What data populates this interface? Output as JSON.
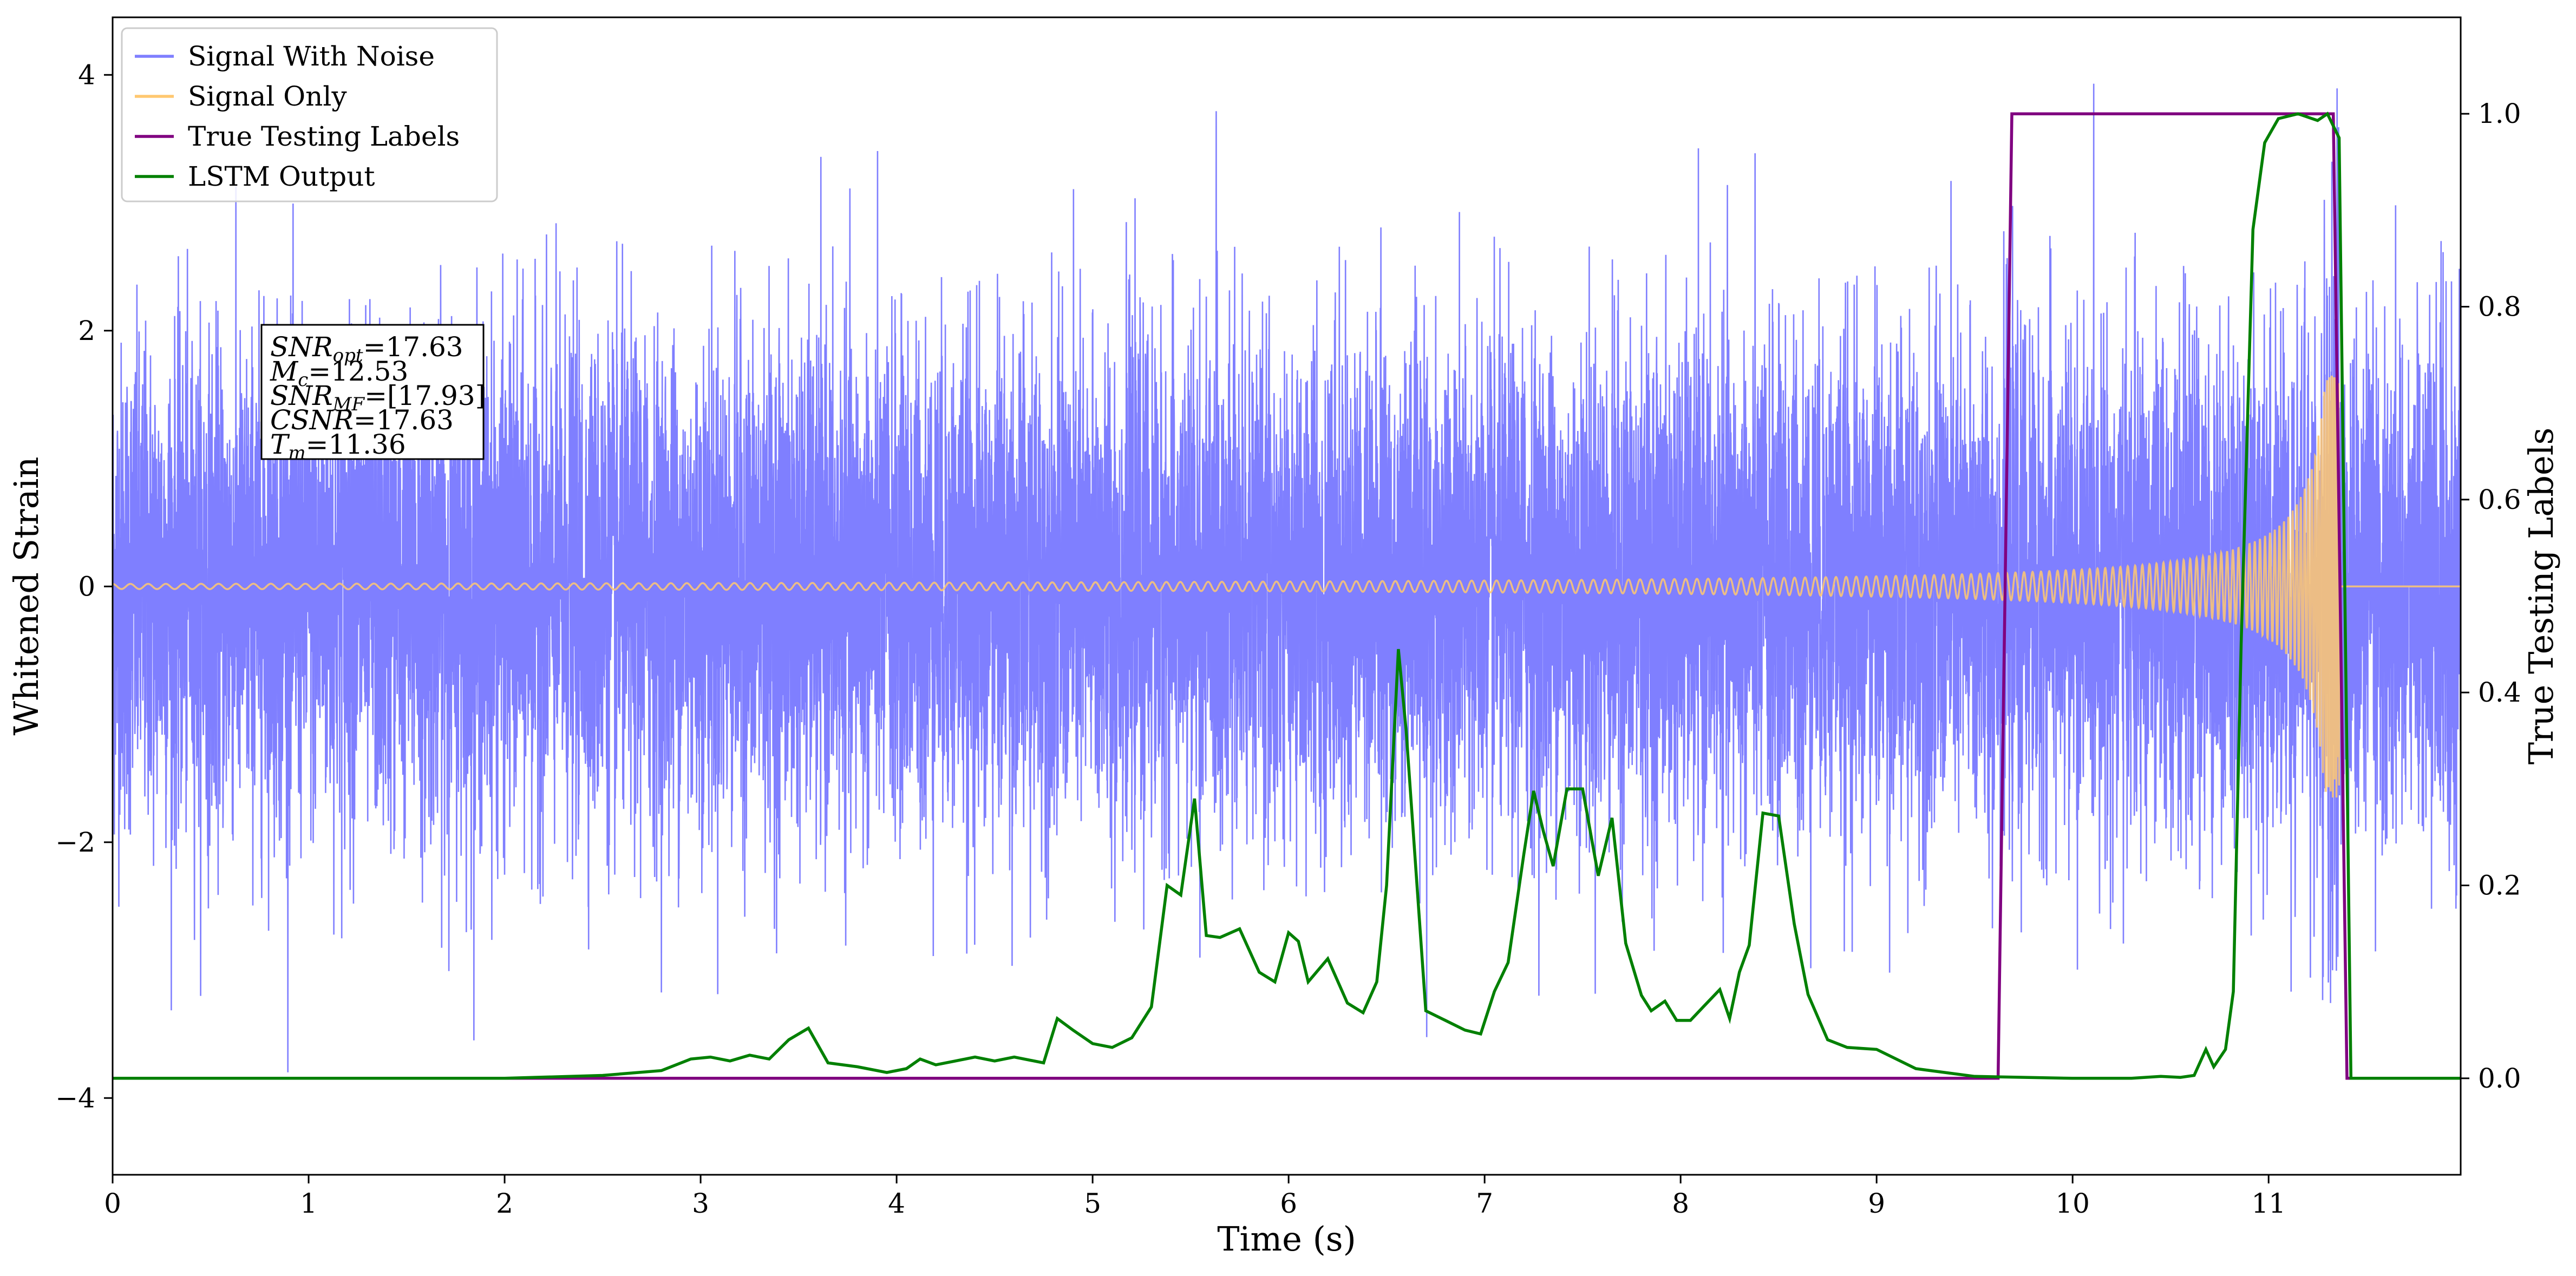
{
  "chart_data": {
    "type": "line",
    "xlabel": "Time (s)",
    "ylabel_left": "Whitened Strain",
    "ylabel_right": "True Testing Labels",
    "xlim": [
      0,
      11.98
    ],
    "ylim_left": [
      -4.6,
      4.45
    ],
    "ylim_right": [
      -0.1,
      1.1
    ],
    "x_ticks": [
      0,
      1,
      2,
      3,
      4,
      5,
      6,
      7,
      8,
      9,
      10,
      11
    ],
    "y_left_ticks": [
      -4,
      -2,
      0,
      2,
      4
    ],
    "y_left_tick_labels": [
      "−4",
      "−2",
      "0",
      "2",
      "4"
    ],
    "y_right_ticks": [
      0.0,
      0.2,
      0.4,
      0.6,
      0.8,
      1.0
    ],
    "y_right_tick_labels": [
      "0.0",
      "0.2",
      "0.4",
      "0.6",
      "0.8",
      "1.0"
    ],
    "grid": false,
    "legend_position": "top-left",
    "colors": {
      "signal_with_noise": "#7f7fff",
      "signal_only": "#ffc870",
      "true_labels": "#800080",
      "lstm_output": "#008000"
    },
    "series": [
      {
        "name": "Signal With Noise",
        "axis": "left",
        "description": "dense noisy strain, roughly within -3.8 to 4.0",
        "noise_envelope": [
          -3.8,
          4.0
        ]
      },
      {
        "name": "Signal Only",
        "axis": "left",
        "chirp_amplitude_start": 0.02,
        "chirp_amplitude_peak": 1.65,
        "merger_time": 11.36
      },
      {
        "name": "True Testing Labels",
        "axis": "right",
        "x": [
          0,
          9.62,
          9.69,
          11.33,
          11.4,
          11.98
        ],
        "y": [
          0,
          0,
          1,
          1,
          0,
          0
        ]
      },
      {
        "name": "LSTM Output",
        "axis": "right",
        "x": [
          0,
          2.0,
          2.5,
          2.8,
          2.95,
          3.05,
          3.15,
          3.25,
          3.35,
          3.45,
          3.55,
          3.65,
          3.8,
          3.95,
          4.05,
          4.12,
          4.2,
          4.3,
          4.4,
          4.5,
          4.6,
          4.75,
          4.82,
          4.9,
          5.0,
          5.1,
          5.2,
          5.3,
          5.38,
          5.45,
          5.52,
          5.58,
          5.65,
          5.75,
          5.85,
          5.93,
          6.0,
          6.05,
          6.1,
          6.2,
          6.3,
          6.38,
          6.45,
          6.5,
          6.56,
          6.6,
          6.7,
          6.8,
          6.9,
          6.98,
          7.05,
          7.12,
          7.2,
          7.25,
          7.3,
          7.35,
          7.42,
          7.5,
          7.58,
          7.65,
          7.72,
          7.8,
          7.85,
          7.92,
          7.98,
          8.05,
          8.12,
          8.2,
          8.25,
          8.3,
          8.35,
          8.42,
          8.5,
          8.58,
          8.65,
          8.75,
          8.85,
          9.0,
          9.2,
          9.5,
          10.0,
          10.3,
          10.45,
          10.55,
          10.62,
          10.68,
          10.72,
          10.78,
          10.82,
          10.86,
          10.92,
          10.98,
          11.05,
          11.15,
          11.25,
          11.3,
          11.36,
          11.42,
          11.5,
          11.98
        ],
        "y": [
          0,
          0,
          0.003,
          0.008,
          0.02,
          0.022,
          0.018,
          0.024,
          0.02,
          0.04,
          0.052,
          0.016,
          0.012,
          0.006,
          0.01,
          0.02,
          0.014,
          0.018,
          0.022,
          0.018,
          0.022,
          0.016,
          0.062,
          0.05,
          0.036,
          0.032,
          0.042,
          0.074,
          0.2,
          0.19,
          0.29,
          0.148,
          0.146,
          0.155,
          0.11,
          0.1,
          0.151,
          0.142,
          0.1,
          0.124,
          0.078,
          0.068,
          0.1,
          0.2,
          0.445,
          0.36,
          0.07,
          0.06,
          0.05,
          0.046,
          0.09,
          0.12,
          0.232,
          0.298,
          0.256,
          0.22,
          0.3,
          0.3,
          0.21,
          0.27,
          0.14,
          0.086,
          0.07,
          0.08,
          0.06,
          0.06,
          0.075,
          0.092,
          0.062,
          0.11,
          0.138,
          0.275,
          0.272,
          0.16,
          0.087,
          0.04,
          0.032,
          0.03,
          0.01,
          0.002,
          0,
          0,
          0.002,
          0.001,
          0.003,
          0.03,
          0.012,
          0.03,
          0.09,
          0.45,
          0.88,
          0.97,
          0.995,
          1.0,
          0.993,
          1.0,
          0.975,
          0.0,
          0.0,
          0.0
        ]
      }
    ],
    "annotation": {
      "lines": [
        {
          "label_main": "SNR",
          "label_sub": "opt",
          "value": "=17.63"
        },
        {
          "label_main": "M",
          "label_sub": "c",
          "value": "=12.53"
        },
        {
          "label_main": "SNR",
          "label_sub": "MF",
          "value": "=[17.93]"
        },
        {
          "label_main": "CSNR",
          "label_sub": "",
          "value": "=17.63"
        },
        {
          "label_main": "T",
          "label_sub": "m",
          "value": "=11.36"
        }
      ]
    }
  }
}
